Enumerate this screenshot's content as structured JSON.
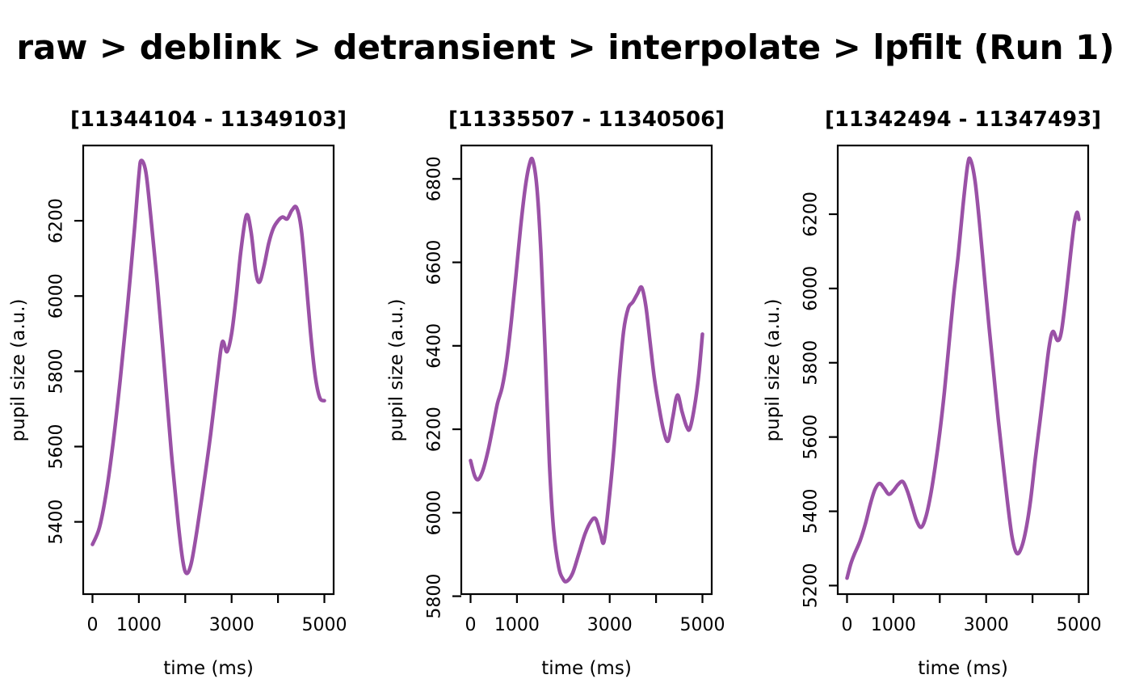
{
  "page_title": "raw > deblink > detransient > interpolate > lpfilt (Run 1)",
  "line_color": "#9A51A6",
  "axis_color": "#000000",
  "chart_data": [
    {
      "type": "line",
      "title": "[11344104 - 11349103]",
      "xlabel": "time (ms)",
      "ylabel": "pupil size (a.u.)",
      "xlim": [
        -200,
        5200
      ],
      "ylim": [
        5208,
        6400
      ],
      "x_ticks": [
        0,
        1000,
        2000,
        3000,
        4000,
        5000
      ],
      "x_tick_labels": [
        "0",
        "1000",
        "",
        "3000",
        "",
        "5000"
      ],
      "y_ticks": [
        5400,
        5600,
        5800,
        6000,
        6200
      ],
      "x": [
        0,
        150,
        300,
        450,
        600,
        750,
        900,
        1000,
        1050,
        1150,
        1250,
        1400,
        1550,
        1700,
        1850,
        1950,
        2030,
        2130,
        2250,
        2400,
        2550,
        2700,
        2800,
        2900,
        3000,
        3100,
        3200,
        3320,
        3420,
        3520,
        3600,
        3700,
        3800,
        3900,
        4000,
        4100,
        4200,
        4300,
        4400,
        4500,
        4600,
        4700,
        4800,
        4900,
        5000
      ],
      "y": [
        5340,
        5385,
        5480,
        5615,
        5780,
        5965,
        6170,
        6320,
        6360,
        6330,
        6220,
        6030,
        5810,
        5585,
        5395,
        5295,
        5263,
        5290,
        5375,
        5500,
        5635,
        5790,
        5878,
        5852,
        5900,
        6000,
        6120,
        6215,
        6170,
        6065,
        6037,
        6080,
        6140,
        6180,
        6200,
        6210,
        6205,
        6228,
        6235,
        6180,
        6050,
        5905,
        5790,
        5730,
        5722
      ]
    },
    {
      "type": "line",
      "title": "[11335507 - 11340506]",
      "xlabel": "time (ms)",
      "ylabel": "pupil size (a.u.)",
      "xlim": [
        -200,
        5200
      ],
      "ylim": [
        5805,
        6880
      ],
      "x_ticks": [
        0,
        1000,
        2000,
        3000,
        4000,
        5000
      ],
      "x_tick_labels": [
        "0",
        "1000",
        "",
        "3000",
        "",
        "5000"
      ],
      "y_ticks": [
        5800,
        6000,
        6200,
        6400,
        6600,
        6800
      ],
      "x": [
        0,
        90,
        170,
        270,
        380,
        480,
        580,
        680,
        780,
        880,
        980,
        1080,
        1180,
        1270,
        1340,
        1430,
        1520,
        1610,
        1700,
        1790,
        1900,
        2000,
        2080,
        2200,
        2330,
        2470,
        2600,
        2700,
        2800,
        2880,
        3000,
        3100,
        3200,
        3300,
        3400,
        3500,
        3600,
        3690,
        3780,
        3870,
        3960,
        4060,
        4160,
        4260,
        4360,
        4460,
        4560,
        4660,
        4730,
        4830,
        4920,
        5000
      ],
      "y": [
        6125,
        6088,
        6080,
        6103,
        6150,
        6205,
        6262,
        6300,
        6365,
        6460,
        6570,
        6685,
        6780,
        6835,
        6845,
        6780,
        6620,
        6380,
        6120,
        5960,
        5870,
        5840,
        5836,
        5855,
        5900,
        5950,
        5980,
        5985,
        5950,
        5932,
        6045,
        6165,
        6315,
        6435,
        6490,
        6505,
        6525,
        6540,
        6495,
        6410,
        6325,
        6255,
        6198,
        6172,
        6228,
        6282,
        6242,
        6206,
        6202,
        6255,
        6330,
        6428
      ]
    },
    {
      "type": "line",
      "title": "[11342494 - 11347493]",
      "xlabel": "time (ms)",
      "ylabel": "pupil size (a.u.)",
      "xlim": [
        -200,
        5200
      ],
      "ylim": [
        5177,
        6385
      ],
      "x_ticks": [
        0,
        1000,
        2000,
        3000,
        4000,
        5000
      ],
      "x_tick_labels": [
        "0",
        "1000",
        "",
        "3000",
        "",
        "5000"
      ],
      "y_ticks": [
        5200,
        5400,
        5600,
        5800,
        6000,
        6200
      ],
      "x": [
        0,
        80,
        160,
        280,
        400,
        500,
        600,
        700,
        800,
        900,
        1000,
        1100,
        1200,
        1300,
        1400,
        1500,
        1600,
        1700,
        1800,
        1900,
        2000,
        2100,
        2200,
        2300,
        2400,
        2500,
        2600,
        2660,
        2760,
        2860,
        2960,
        3060,
        3160,
        3260,
        3360,
        3460,
        3560,
        3660,
        3760,
        3860,
        3960,
        4060,
        4160,
        4260,
        4360,
        4440,
        4540,
        4620,
        4720,
        4820,
        4900,
        4960,
        5000
      ],
      "y": [
        5220,
        5258,
        5285,
        5320,
        5368,
        5418,
        5458,
        5475,
        5462,
        5446,
        5456,
        5472,
        5480,
        5455,
        5415,
        5375,
        5357,
        5385,
        5442,
        5520,
        5612,
        5722,
        5852,
        5982,
        6092,
        6222,
        6332,
        6347,
        6290,
        6172,
        6035,
        5900,
        5775,
        5648,
        5535,
        5425,
        5330,
        5287,
        5302,
        5352,
        5432,
        5542,
        5642,
        5745,
        5845,
        5884,
        5860,
        5882,
        5978,
        6092,
        6175,
        6205,
        6186
      ]
    }
  ]
}
